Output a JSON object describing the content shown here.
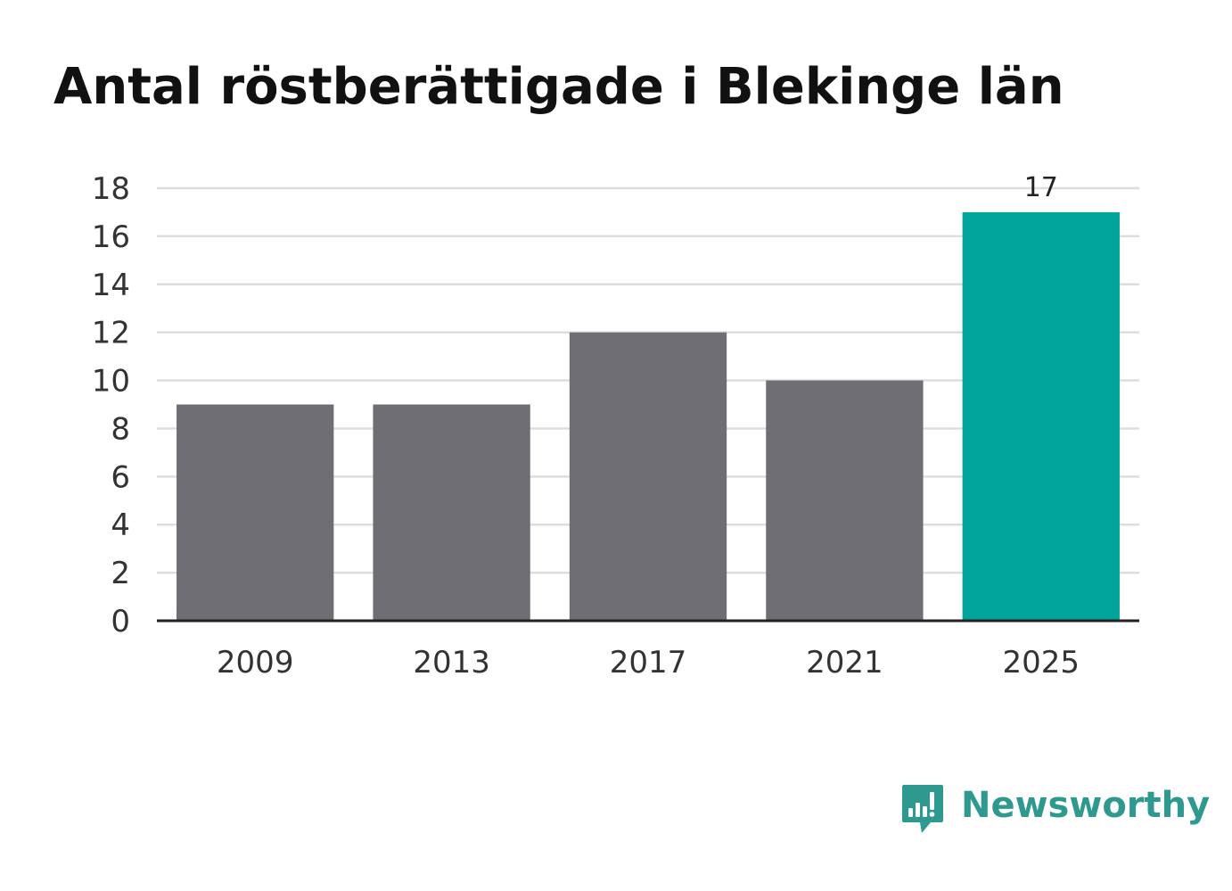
{
  "title": "Antal röstberättigade i Blekinge län",
  "colors": {
    "default_bar": "#6f6e74",
    "highlight_bar": "#00a49a",
    "grid": "#dddddd",
    "axis": "#222222",
    "brand": "#2e9a8f"
  },
  "chart_data": {
    "type": "bar",
    "title": "Antal röstberättigade i Blekinge län",
    "xlabel": "",
    "ylabel": "",
    "categories": [
      "2009",
      "2013",
      "2017",
      "2021",
      "2025"
    ],
    "values": [
      9,
      9,
      12,
      10,
      17
    ],
    "highlight_index": 4,
    "data_labels": [
      "",
      "",
      "",
      "",
      "17"
    ],
    "ylim": [
      0,
      18
    ],
    "yticks": [
      0,
      2,
      4,
      6,
      8,
      10,
      12,
      14,
      16,
      18
    ],
    "grid": true,
    "legend": "none"
  },
  "brand": {
    "name": "Newsworthy",
    "icon": "newsworthy-chart-bubble-icon"
  }
}
